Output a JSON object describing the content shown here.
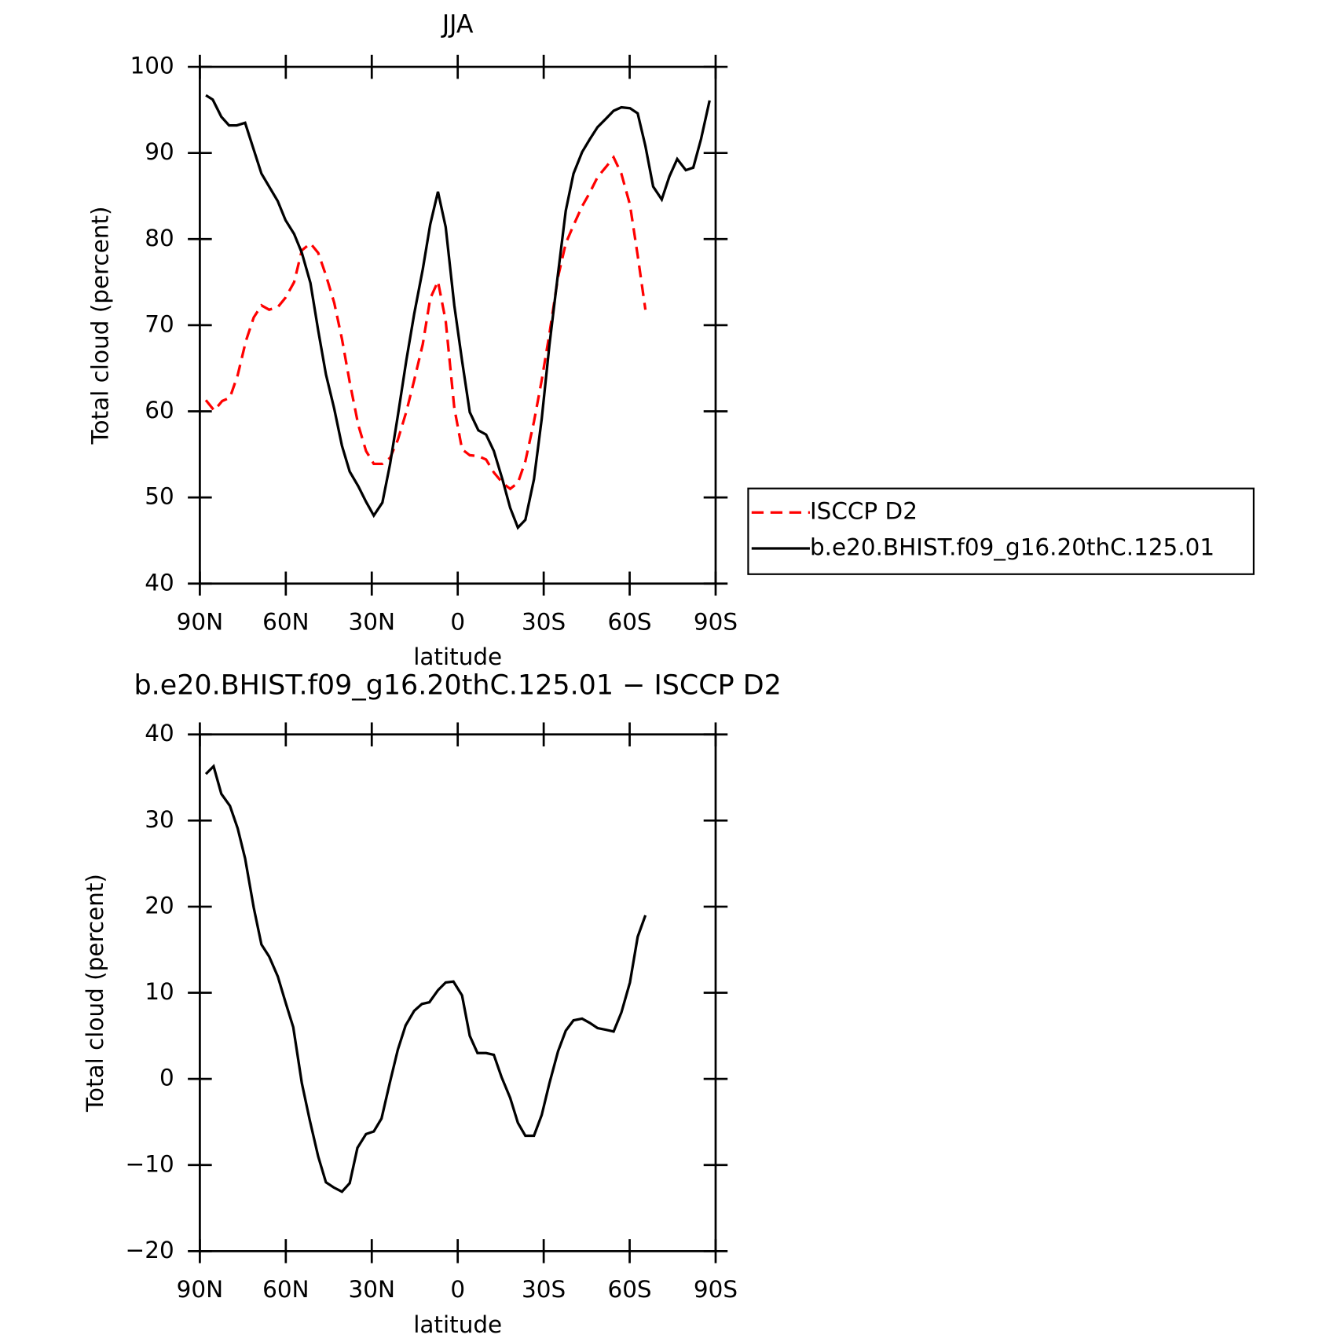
{
  "chart_data": [
    {
      "type": "line",
      "title": "JJA",
      "xlabel": "latitude",
      "ylabel": "Total cloud (percent)",
      "xlim": [
        90,
        -90
      ],
      "xticks": [
        {
          "value": 90,
          "label": "90N"
        },
        {
          "value": 60,
          "label": "60N"
        },
        {
          "value": 30,
          "label": "30N"
        },
        0,
        {
          "value": -30,
          "label": "30S"
        },
        {
          "value": -60,
          "label": "60S"
        },
        {
          "value": -90,
          "label": "90S"
        }
      ],
      "ylim": [
        40,
        100
      ],
      "yticks": [
        40,
        50,
        60,
        70,
        80,
        90,
        100
      ],
      "legend": "right",
      "series": [
        {
          "name": "ISCCP D2",
          "color": "#ff0000",
          "dash": true,
          "x": [
            87.9,
            85.0,
            82.2,
            79.5,
            76.8,
            73.9,
            71.2,
            68.5,
            65.8,
            62.8,
            60.1,
            57.1,
            54.4,
            51.4,
            48.7,
            46.0,
            43.1,
            40.4,
            37.7,
            34.7,
            32.0,
            29.3,
            26.3,
            23.6,
            20.9,
            17.9,
            15.2,
            12.2,
            9.6,
            6.9,
            4.2,
            1.2,
            -1.5,
            -4.2,
            -7.2,
            -9.9,
            -12.6,
            -15.6,
            -18.3,
            -21.0,
            -23.6,
            -26.6,
            -29.3,
            -32.0,
            -35.0,
            -37.7,
            -40.4,
            -43.4,
            -46.1,
            -48.8,
            -51.8,
            -54.4,
            -57.1,
            -60.1,
            -62.8,
            -65.5
          ],
          "values": [
            61.3,
            60.1,
            61.2,
            61.6,
            64.2,
            68.2,
            70.9,
            72.3,
            71.8,
            72.1,
            73.2,
            75.0,
            78.7,
            79.5,
            78.4,
            75.8,
            72.6,
            68.4,
            63.4,
            58.4,
            55.4,
            53.9,
            53.9,
            54.6,
            56.7,
            60.0,
            63.6,
            67.8,
            73.1,
            75.1,
            70.5,
            60.4,
            55.6,
            54.9,
            54.8,
            54.4,
            52.9,
            51.7,
            51.0,
            51.7,
            54.2,
            58.8,
            63.6,
            69.0,
            75.6,
            79.5,
            81.6,
            83.8,
            85.4,
            87.2,
            88.4,
            89.5,
            87.6,
            84.0,
            78.1,
            71.8
          ]
        },
        {
          "name": "b.e20.BHIST.f09_g16.20thC.125.01",
          "color": "#000000",
          "dash": false,
          "x": [
            87.9,
            85.5,
            82.5,
            79.8,
            77.1,
            74.2,
            71.5,
            68.5,
            62.8,
            60.1,
            57.1,
            54.4,
            51.4,
            48.7,
            46.0,
            43.1,
            40.4,
            37.7,
            34.7,
            32.0,
            29.3,
            26.3,
            23.6,
            20.9,
            17.9,
            15.2,
            12.2,
            9.6,
            6.9,
            4.2,
            1.2,
            -1.5,
            -4.2,
            -7.2,
            -9.9,
            -12.6,
            -15.6,
            -18.3,
            -21.0,
            -23.6,
            -26.6,
            -29.3,
            -32.0,
            -35.0,
            -37.7,
            -40.4,
            -43.4,
            -46.1,
            -48.8,
            -51.8,
            -54.4,
            -57.1,
            -60.1,
            -62.8,
            -65.5,
            -68.2,
            -71.2,
            -73.9,
            -76.6,
            -79.6,
            -82.2,
            -84.9,
            -87.9
          ],
          "values": [
            96.7,
            96.2,
            94.2,
            93.2,
            93.2,
            93.5,
            90.7,
            87.6,
            84.4,
            82.2,
            80.6,
            78.4,
            74.9,
            69.4,
            64.3,
            60.3,
            56.0,
            53.0,
            51.3,
            49.5,
            47.9,
            49.4,
            53.9,
            59.5,
            66.0,
            71.3,
            76.5,
            81.7,
            85.5,
            81.4,
            72.3,
            65.9,
            59.9,
            57.8,
            57.3,
            55.4,
            52.1,
            48.8,
            46.5,
            47.4,
            52.1,
            59.1,
            67.7,
            76.0,
            83.3,
            87.6,
            90.1,
            91.6,
            93.0,
            94.0,
            94.9,
            95.3,
            95.2,
            94.6,
            90.8,
            86.1,
            84.6,
            87.3,
            89.3,
            88.0,
            88.3,
            91.6,
            96.1
          ]
        }
      ]
    },
    {
      "type": "line",
      "title": "b.e20.BHIST.f09_g16.20thC.125.01 − ISCCP D2",
      "xlabel": "latitude",
      "ylabel": "Total cloud (percent)",
      "xlim": [
        90,
        -90
      ],
      "xticks": [
        {
          "value": 90,
          "label": "90N"
        },
        {
          "value": 60,
          "label": "60N"
        },
        {
          "value": 30,
          "label": "30N"
        },
        0,
        {
          "value": -30,
          "label": "30S"
        },
        {
          "value": -60,
          "label": "60S"
        },
        {
          "value": -90,
          "label": "90S"
        }
      ],
      "ylim": [
        -20,
        40
      ],
      "yticks": [
        {
          "value": -20,
          "label": "−20"
        },
        {
          "value": -10,
          "label": "−10"
        },
        0,
        10,
        20,
        30,
        40
      ],
      "color": "#000000",
      "x": [
        87.9,
        85.2,
        82.5,
        79.5,
        76.8,
        74.2,
        71.2,
        68.5,
        65.8,
        62.8,
        60.1,
        57.4,
        54.4,
        51.7,
        48.7,
        46.0,
        43.3,
        40.4,
        37.7,
        35.0,
        32.0,
        29.3,
        26.6,
        23.6,
        20.9,
        18.2,
        15.2,
        12.5,
        9.9,
        6.9,
        4.2,
        1.5,
        -1.5,
        -4.2,
        -6.9,
        -9.9,
        -12.6,
        -15.3,
        -18.3,
        -21.0,
        -23.6,
        -26.6,
        -29.3,
        -32.0,
        -35.0,
        -37.7,
        -40.4,
        -43.4,
        -46.1,
        -48.8,
        -51.8,
        -54.4,
        -57.1,
        -60.1,
        -62.8,
        -65.5
      ],
      "values": [
        35.4,
        36.3,
        33.1,
        31.7,
        29.1,
        25.6,
        19.9,
        15.6,
        14.2,
        11.9,
        8.9,
        6.0,
        -0.5,
        -4.7,
        -9.0,
        -12.0,
        -12.6,
        -13.1,
        -12.1,
        -8.0,
        -6.4,
        -6.1,
        -4.6,
        -0.3,
        3.4,
        6.2,
        7.9,
        8.7,
        8.9,
        10.3,
        11.2,
        11.3,
        9.7,
        5.0,
        3.0,
        3.0,
        2.8,
        0.2,
        -2.2,
        -5.1,
        -6.6,
        -6.6,
        -4.2,
        -0.5,
        3.2,
        5.6,
        6.8,
        7.0,
        6.5,
        5.9,
        5.7,
        5.5,
        7.7,
        11.2,
        16.5,
        19.0
      ]
    }
  ]
}
